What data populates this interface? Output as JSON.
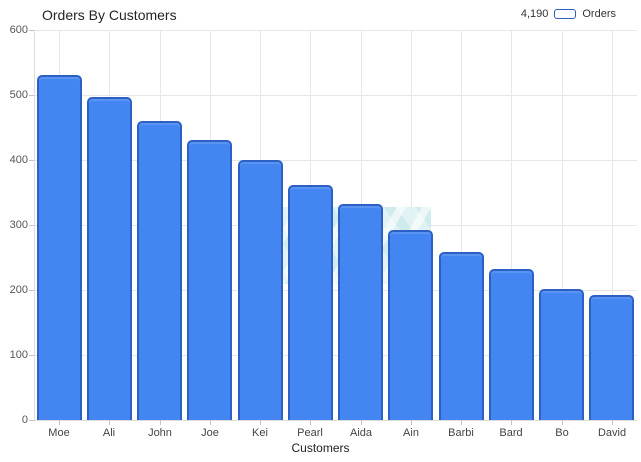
{
  "title": "Orders By Customers",
  "legend": {
    "total": "4,190",
    "series_label": "Orders"
  },
  "x_axis_title": "Customers",
  "colors": {
    "bar_fill": "#4486f1",
    "bar_border": "#2d60c4",
    "grid": "#e7e7e7",
    "axis_line": "#dcdcdc",
    "tick": "#c4c4c4",
    "watermark": "#d9eff1"
  },
  "chart_data": {
    "type": "bar",
    "title": "Orders By Customers",
    "series_name": "Orders",
    "series_total": 4190,
    "categories": [
      "Moe",
      "Ali",
      "John",
      "Joe",
      "Kei",
      "Pearl",
      "Aida",
      "Ain",
      "Barbi",
      "Bard",
      "Bo",
      "David"
    ],
    "values": [
      530,
      497,
      460,
      430,
      400,
      362,
      332,
      293,
      259,
      233,
      202,
      192
    ],
    "xlabel": "Customers",
    "ylabel": "",
    "ylim": [
      0,
      600
    ],
    "ytick_interval": 100,
    "ytick_labels": [
      "0",
      "100",
      "200",
      "300",
      "400",
      "500",
      "600"
    ],
    "grid": true,
    "legend_position": "top-right"
  }
}
